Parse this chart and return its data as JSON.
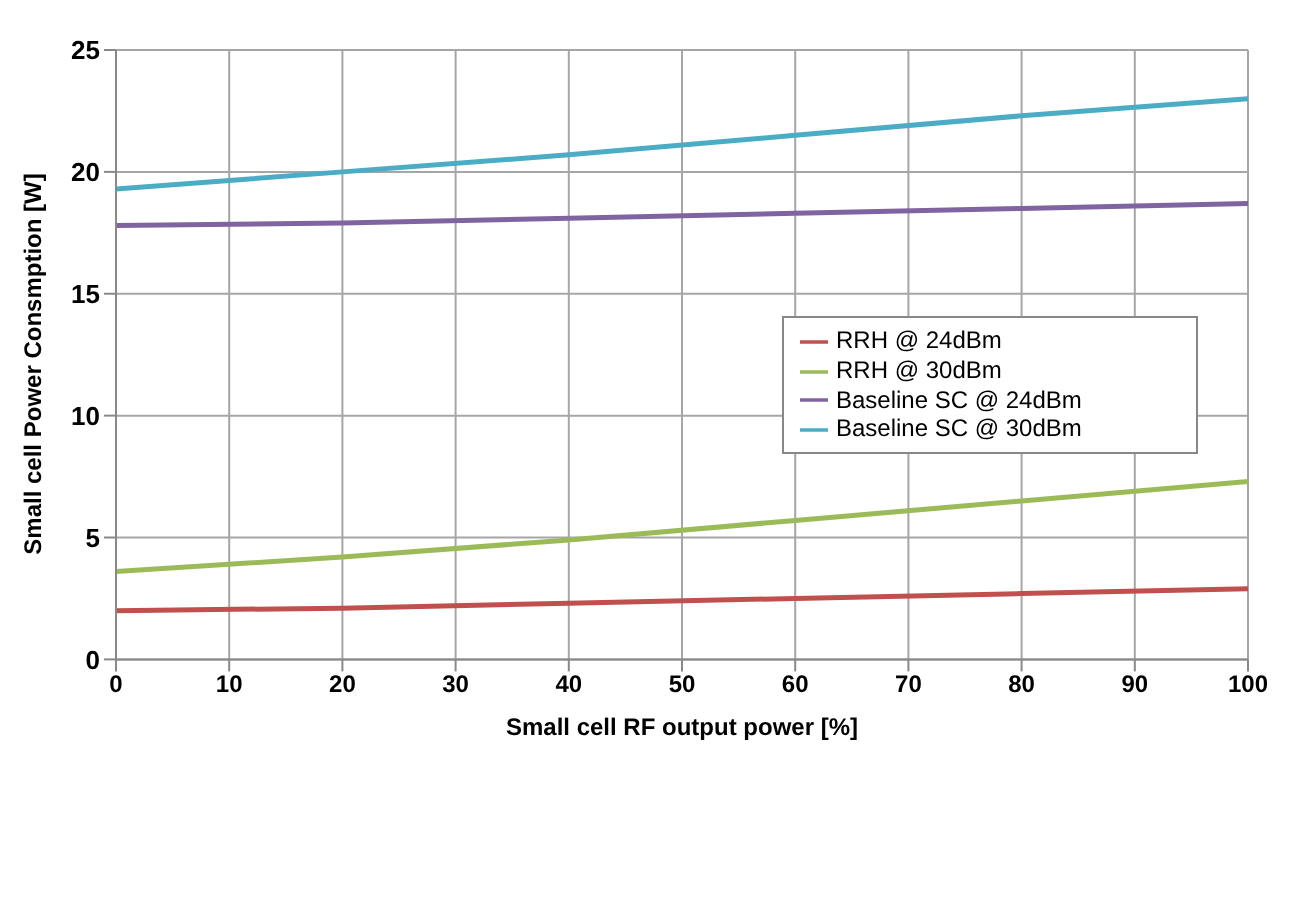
{
  "chart_data": {
    "type": "line",
    "xlabel": "Small cell RF output power [%]",
    "ylabel": "Small cell Power Consmption [W]",
    "x": [
      0,
      20,
      40,
      60,
      80,
      100
    ],
    "series": [
      {
        "name": "RRH @ 24dBm",
        "color": "#c0504d",
        "values": [
          2.0,
          2.1,
          2.3,
          2.5,
          2.7,
          2.9
        ]
      },
      {
        "name": "RRH @ 30dBm",
        "color": "#9bbb59",
        "values": [
          3.6,
          4.2,
          4.9,
          5.7,
          6.5,
          7.3
        ]
      },
      {
        "name": "Baseline SC @ 24dBm",
        "color": "#8064a2",
        "values": [
          17.8,
          17.9,
          18.1,
          18.3,
          18.5,
          18.7
        ]
      },
      {
        "name": "Baseline SC @ 30dBm",
        "color": "#4bacc6",
        "values": [
          19.3,
          20.0,
          20.7,
          21.5,
          22.3,
          23.0
        ]
      }
    ],
    "xlim": [
      0,
      100
    ],
    "xticks": [
      0,
      10,
      20,
      30,
      40,
      50,
      60,
      70,
      80,
      90,
      100
    ],
    "ylim": [
      0,
      25
    ],
    "yticks": [
      0,
      5,
      10,
      15,
      20,
      25
    ],
    "grid": true,
    "legend": "right",
    "marker": "none",
    "line_style": "solid"
  }
}
